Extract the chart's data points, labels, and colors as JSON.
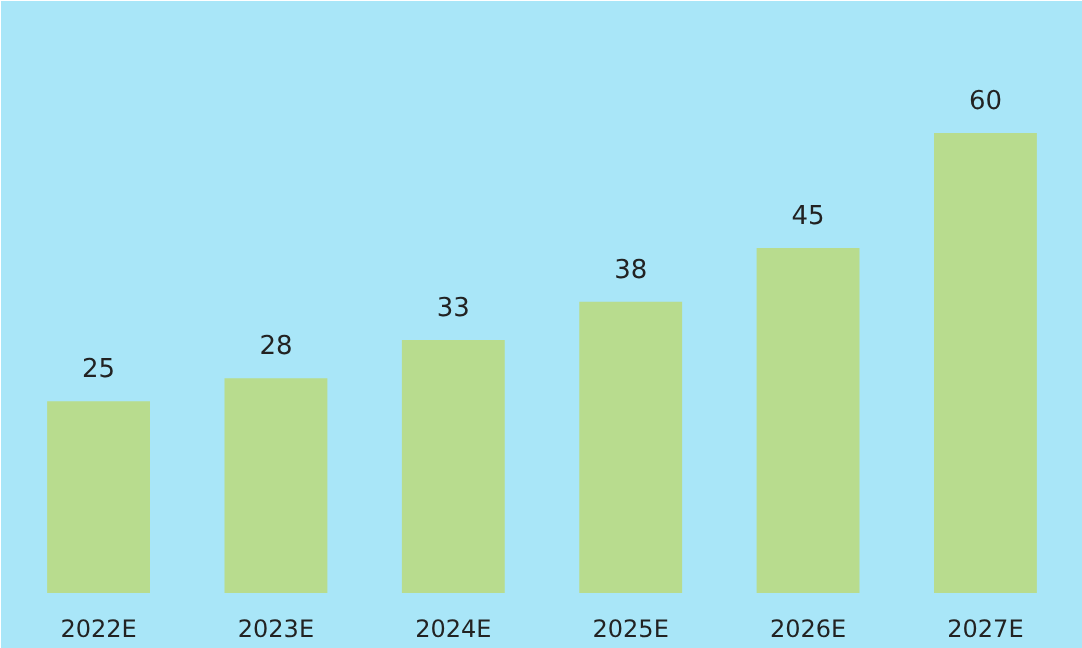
{
  "chart_data": {
    "type": "bar",
    "categories": [
      "2022E",
      "2023E",
      "2024E",
      "2025E",
      "2026E",
      "2027E"
    ],
    "values": [
      25,
      28,
      33,
      38,
      45,
      60
    ],
    "color": "#b8dc8e",
    "data_labels": true
  }
}
